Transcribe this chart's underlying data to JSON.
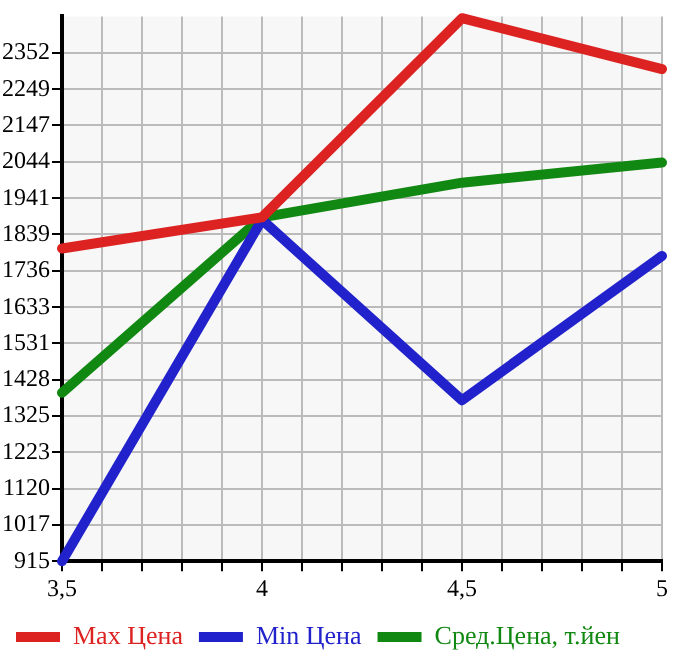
{
  "chart_data": {
    "type": "line",
    "x": [
      3.5,
      4,
      4.5,
      5
    ],
    "series": [
      {
        "name": "Max Цена",
        "color": "#dd2222",
        "values": [
          1799,
          1887,
          2450,
          2306
        ]
      },
      {
        "name": "Min Цена",
        "color": "#2222cc",
        "values": [
          915,
          1880,
          1370,
          1778
        ]
      },
      {
        "name": "Сред.Цена, т.йен",
        "color": "#118811",
        "values": [
          1391,
          1887,
          1985,
          2042
        ]
      }
    ],
    "xlim": [
      3.5,
      5
    ],
    "xticks": [
      {
        "value": 3.5,
        "label": "3,5"
      },
      {
        "value": 3.6,
        "label": null
      },
      {
        "value": 3.7,
        "label": null
      },
      {
        "value": 3.8,
        "label": null
      },
      {
        "value": 3.9,
        "label": null
      },
      {
        "value": 4,
        "label": "4"
      },
      {
        "value": 4.1,
        "label": null
      },
      {
        "value": 4.2,
        "label": null
      },
      {
        "value": 4.3,
        "label": null
      },
      {
        "value": 4.4,
        "label": null
      },
      {
        "value": 4.5,
        "label": "4,5"
      },
      {
        "value": 4.6,
        "label": null
      },
      {
        "value": 4.7,
        "label": null
      },
      {
        "value": 4.8,
        "label": null
      },
      {
        "value": 4.9,
        "label": null
      },
      {
        "value": 5,
        "label": "5"
      }
    ],
    "ylim": [
      915,
      2455
    ],
    "yticks": [
      915,
      1017,
      1120,
      1223,
      1325,
      1428,
      1531,
      1633,
      1736,
      1839,
      1941,
      2044,
      2147,
      2249,
      2352
    ],
    "grid": true,
    "legend": "bottom",
    "marker": "none",
    "line_style": "solid"
  }
}
